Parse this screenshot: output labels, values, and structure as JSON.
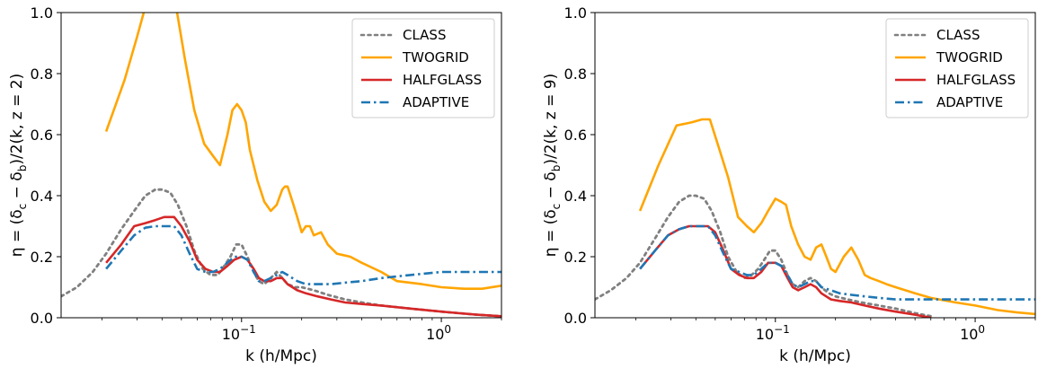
{
  "chart_data": [
    {
      "type": "line",
      "xscale": "log",
      "xlabel": "k (h/Mpc)",
      "ylabel": "η = (δc − δb)/2(k, z = 2)",
      "ylabel_parts": {
        "prefix": "η = (δ",
        "s1": "c",
        "mid": " − δ",
        "s2": "b",
        "suffix": ")/2(k, z = 2)"
      },
      "xlim": [
        0.0125,
        2.0
      ],
      "ylim": [
        0.0,
        1.0
      ],
      "yticks": [
        "0.0",
        "0.2",
        "0.4",
        "0.6",
        "0.8",
        "1.0"
      ],
      "xticks": [
        {
          "value": 0.1,
          "base": "10",
          "exp": "−1"
        },
        {
          "value": 1.0,
          "base": "10",
          "exp": "0"
        }
      ],
      "legend": "top-right",
      "grid": false,
      "series": [
        {
          "name": "CLASS",
          "color": "#808080",
          "style": "dotted",
          "x": [
            0.0125,
            0.015,
            0.018,
            0.021,
            0.025,
            0.029,
            0.033,
            0.037,
            0.04,
            0.044,
            0.048,
            0.053,
            0.058,
            0.064,
            0.07,
            0.076,
            0.082,
            0.088,
            0.094,
            0.1,
            0.107,
            0.115,
            0.122,
            0.13,
            0.14,
            0.15,
            0.16,
            0.17,
            0.185,
            0.2,
            0.23,
            0.27,
            0.33,
            0.4,
            0.5,
            0.7,
            1.0,
            1.5,
            2.0
          ],
          "y": [
            0.07,
            0.1,
            0.15,
            0.21,
            0.29,
            0.35,
            0.4,
            0.42,
            0.42,
            0.41,
            0.37,
            0.3,
            0.22,
            0.16,
            0.14,
            0.14,
            0.17,
            0.2,
            0.24,
            0.24,
            0.2,
            0.15,
            0.12,
            0.11,
            0.13,
            0.15,
            0.13,
            0.11,
            0.1,
            0.1,
            0.09,
            0.075,
            0.06,
            0.05,
            0.04,
            0.03,
            0.02,
            0.01,
            0.005
          ]
        },
        {
          "name": "TWOGRID",
          "color": "#ffa500",
          "style": "solid",
          "x": [
            0.021,
            0.026,
            0.03,
            0.034,
            0.037,
            0.04,
            0.043,
            0.047,
            0.052,
            0.058,
            0.065,
            0.072,
            0.078,
            0.085,
            0.09,
            0.095,
            0.1,
            0.105,
            0.11,
            0.12,
            0.13,
            0.14,
            0.15,
            0.16,
            0.165,
            0.17,
            0.18,
            0.19,
            0.2,
            0.21,
            0.22,
            0.23,
            0.25,
            0.27,
            0.3,
            0.35,
            0.4,
            0.5,
            0.6,
            0.8,
            1.0,
            1.3,
            1.6,
            2.0
          ],
          "y": [
            0.61,
            0.78,
            0.92,
            1.05,
            1.12,
            1.1,
            1.08,
            1.02,
            0.85,
            0.68,
            0.57,
            0.53,
            0.5,
            0.6,
            0.68,
            0.7,
            0.68,
            0.64,
            0.55,
            0.45,
            0.38,
            0.35,
            0.37,
            0.42,
            0.43,
            0.43,
            0.38,
            0.33,
            0.28,
            0.3,
            0.3,
            0.27,
            0.28,
            0.24,
            0.21,
            0.2,
            0.18,
            0.15,
            0.12,
            0.11,
            0.1,
            0.095,
            0.095,
            0.105
          ]
        },
        {
          "name": "HALFGLASS",
          "color": "#d62728",
          "style": "solid",
          "x": [
            0.021,
            0.025,
            0.029,
            0.033,
            0.037,
            0.041,
            0.046,
            0.05,
            0.055,
            0.06,
            0.066,
            0.072,
            0.078,
            0.085,
            0.092,
            0.1,
            0.107,
            0.115,
            0.122,
            0.13,
            0.14,
            0.15,
            0.16,
            0.17,
            0.19,
            0.21,
            0.24,
            0.28,
            0.33,
            0.4,
            0.5,
            0.7,
            1.0,
            1.5,
            2.0
          ],
          "y": [
            0.18,
            0.24,
            0.3,
            0.31,
            0.32,
            0.33,
            0.33,
            0.3,
            0.25,
            0.19,
            0.16,
            0.15,
            0.15,
            0.17,
            0.19,
            0.2,
            0.19,
            0.16,
            0.13,
            0.12,
            0.12,
            0.13,
            0.13,
            0.11,
            0.09,
            0.08,
            0.07,
            0.06,
            0.05,
            0.045,
            0.04,
            0.03,
            0.02,
            0.01,
            0.005
          ]
        },
        {
          "name": "ADAPTIVE",
          "color": "#1f77b4",
          "style": "dashdot",
          "x": [
            0.021,
            0.025,
            0.029,
            0.033,
            0.037,
            0.041,
            0.046,
            0.05,
            0.055,
            0.06,
            0.066,
            0.072,
            0.078,
            0.085,
            0.092,
            0.1,
            0.107,
            0.115,
            0.122,
            0.13,
            0.14,
            0.15,
            0.16,
            0.17,
            0.19,
            0.21,
            0.24,
            0.28,
            0.33,
            0.4,
            0.5,
            0.7,
            1.0,
            1.5,
            2.0
          ],
          "y": [
            0.16,
            0.22,
            0.27,
            0.295,
            0.3,
            0.3,
            0.3,
            0.27,
            0.21,
            0.16,
            0.15,
            0.15,
            0.16,
            0.18,
            0.2,
            0.2,
            0.19,
            0.15,
            0.12,
            0.12,
            0.13,
            0.14,
            0.15,
            0.14,
            0.12,
            0.11,
            0.11,
            0.11,
            0.115,
            0.12,
            0.13,
            0.14,
            0.15,
            0.15,
            0.15
          ]
        }
      ]
    },
    {
      "type": "line",
      "xscale": "log",
      "xlabel": "k (h/Mpc)",
      "ylabel": "η = (δc − δb)/2(k, z = 9)",
      "ylabel_parts": {
        "prefix": "η = (δ",
        "s1": "c",
        "mid": " − δ",
        "s2": "b",
        "suffix": ")/2(k, z = 9)"
      },
      "xlim": [
        0.0125,
        2.0
      ],
      "ylim": [
        0.0,
        1.0
      ],
      "yticks": [
        "0.0",
        "0.2",
        "0.4",
        "0.6",
        "0.8",
        "1.0"
      ],
      "xticks": [
        {
          "value": 0.1,
          "base": "10",
          "exp": "−1"
        },
        {
          "value": 1.0,
          "base": "10",
          "exp": "0"
        }
      ],
      "legend": "top-right",
      "grid": false,
      "series": [
        {
          "name": "CLASS",
          "color": "#808080",
          "style": "dotted",
          "x": [
            0.0125,
            0.015,
            0.018,
            0.021,
            0.025,
            0.029,
            0.033,
            0.037,
            0.04,
            0.044,
            0.048,
            0.053,
            0.058,
            0.064,
            0.07,
            0.076,
            0.082,
            0.088,
            0.094,
            0.1,
            0.107,
            0.115,
            0.122,
            0.13,
            0.14,
            0.15,
            0.16,
            0.17,
            0.185,
            0.2,
            0.23,
            0.27,
            0.33,
            0.4,
            0.5,
            0.6
          ],
          "y": [
            0.06,
            0.09,
            0.13,
            0.18,
            0.26,
            0.33,
            0.38,
            0.4,
            0.4,
            0.39,
            0.35,
            0.28,
            0.2,
            0.15,
            0.13,
            0.14,
            0.16,
            0.19,
            0.22,
            0.22,
            0.19,
            0.14,
            0.11,
            0.1,
            0.12,
            0.13,
            0.12,
            0.1,
            0.08,
            0.07,
            0.06,
            0.05,
            0.04,
            0.03,
            0.015,
            0.005
          ]
        },
        {
          "name": "TWOGRID",
          "color": "#ffa500",
          "style": "solid",
          "x": [
            0.021,
            0.026,
            0.032,
            0.038,
            0.043,
            0.047,
            0.052,
            0.058,
            0.065,
            0.072,
            0.078,
            0.085,
            0.092,
            0.1,
            0.107,
            0.113,
            0.12,
            0.13,
            0.14,
            0.15,
            0.16,
            0.17,
            0.18,
            0.19,
            0.2,
            0.22,
            0.24,
            0.26,
            0.28,
            0.3,
            0.33,
            0.36,
            0.4,
            0.5,
            0.6,
            0.8,
            1.0,
            1.3,
            1.6,
            2.0
          ],
          "y": [
            0.35,
            0.5,
            0.63,
            0.64,
            0.65,
            0.65,
            0.56,
            0.46,
            0.33,
            0.3,
            0.28,
            0.31,
            0.35,
            0.39,
            0.38,
            0.37,
            0.3,
            0.24,
            0.2,
            0.19,
            0.23,
            0.24,
            0.2,
            0.16,
            0.15,
            0.2,
            0.23,
            0.19,
            0.14,
            0.13,
            0.12,
            0.11,
            0.1,
            0.08,
            0.065,
            0.05,
            0.04,
            0.025,
            0.018,
            0.012
          ]
        },
        {
          "name": "HALFGLASS",
          "color": "#d62728",
          "style": "solid",
          "x": [
            0.021,
            0.025,
            0.029,
            0.033,
            0.037,
            0.041,
            0.046,
            0.05,
            0.055,
            0.06,
            0.066,
            0.072,
            0.078,
            0.085,
            0.092,
            0.1,
            0.107,
            0.115,
            0.122,
            0.13,
            0.14,
            0.15,
            0.16,
            0.17,
            0.19,
            0.21,
            0.24,
            0.28,
            0.33,
            0.4,
            0.5,
            0.6
          ],
          "y": [
            0.16,
            0.22,
            0.27,
            0.29,
            0.3,
            0.3,
            0.3,
            0.28,
            0.22,
            0.16,
            0.14,
            0.13,
            0.13,
            0.15,
            0.18,
            0.18,
            0.17,
            0.13,
            0.1,
            0.09,
            0.1,
            0.11,
            0.1,
            0.08,
            0.06,
            0.055,
            0.05,
            0.04,
            0.03,
            0.02,
            0.01,
            0.0
          ]
        },
        {
          "name": "ADAPTIVE",
          "color": "#1f77b4",
          "style": "dashdot",
          "x": [
            0.021,
            0.025,
            0.029,
            0.033,
            0.037,
            0.041,
            0.046,
            0.05,
            0.055,
            0.06,
            0.066,
            0.072,
            0.078,
            0.085,
            0.092,
            0.1,
            0.107,
            0.115,
            0.122,
            0.13,
            0.14,
            0.15,
            0.16,
            0.17,
            0.19,
            0.21,
            0.24,
            0.28,
            0.33,
            0.4,
            0.5,
            0.7,
            1.0,
            1.5,
            2.0
          ],
          "y": [
            0.16,
            0.22,
            0.27,
            0.29,
            0.3,
            0.3,
            0.3,
            0.27,
            0.21,
            0.16,
            0.15,
            0.14,
            0.14,
            0.16,
            0.18,
            0.18,
            0.17,
            0.14,
            0.11,
            0.1,
            0.11,
            0.12,
            0.12,
            0.1,
            0.09,
            0.08,
            0.075,
            0.07,
            0.065,
            0.06,
            0.06,
            0.06,
            0.06,
            0.06,
            0.06
          ]
        }
      ]
    }
  ]
}
